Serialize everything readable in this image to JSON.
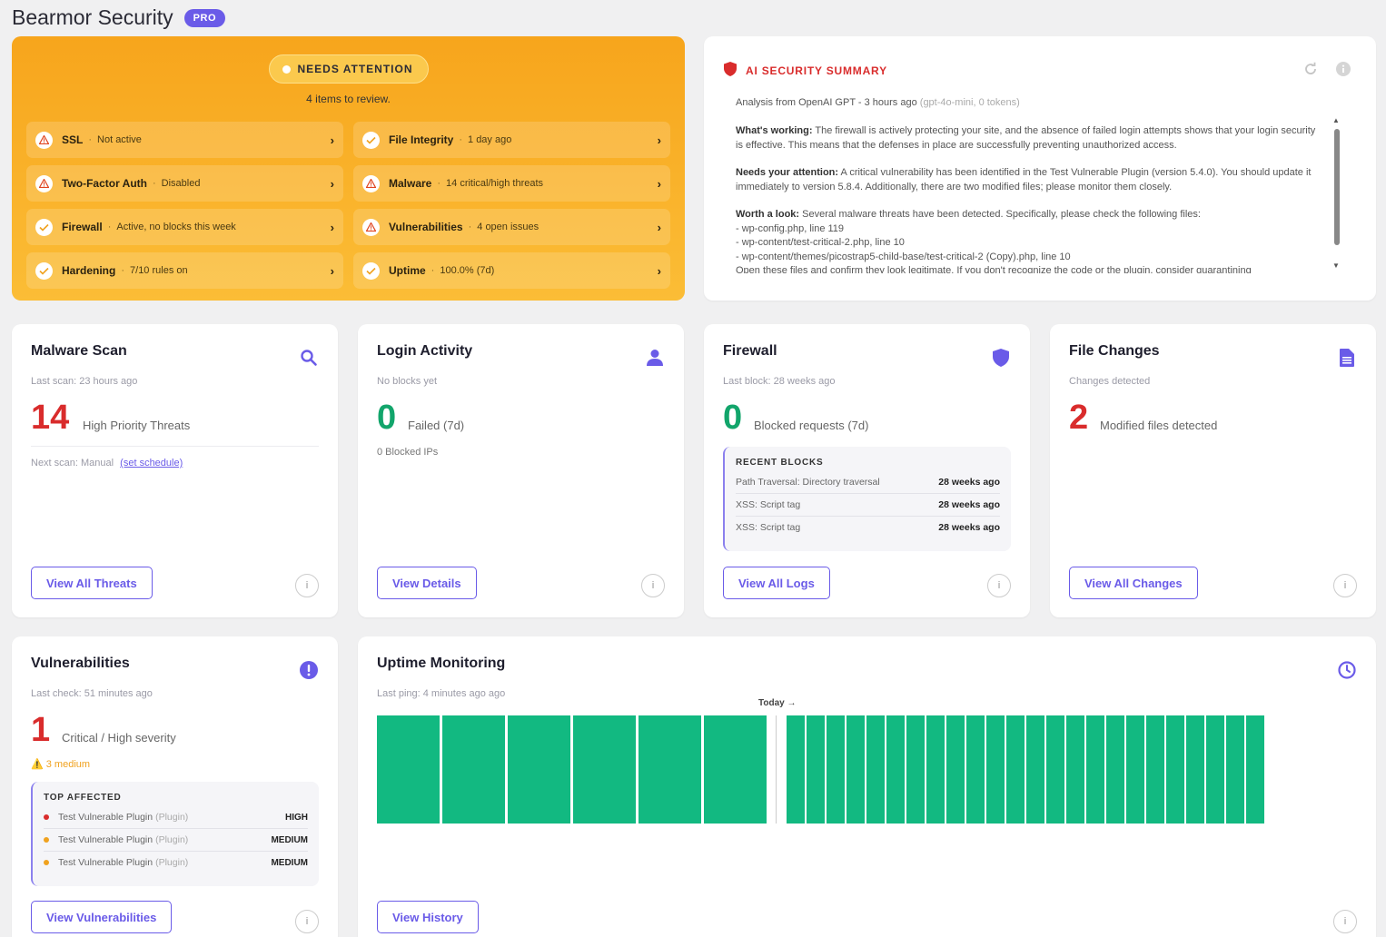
{
  "app": {
    "title": "Bearmor Security",
    "badge": "PRO"
  },
  "attention": {
    "status": "NEEDS ATTENTION",
    "summary": "4 items to review.",
    "items": [
      {
        "name": "SSL",
        "detail": "Not active",
        "state": "warn"
      },
      {
        "name": "File Integrity",
        "detail": "1 day ago",
        "state": "ok"
      },
      {
        "name": "Two-Factor Auth",
        "detail": "Disabled",
        "state": "warn"
      },
      {
        "name": "Malware",
        "detail": "14 critical/high threats",
        "state": "warn"
      },
      {
        "name": "Firewall",
        "detail": "Active, no blocks this week",
        "state": "ok"
      },
      {
        "name": "Vulnerabilities",
        "detail": "4 open issues",
        "state": "warn"
      },
      {
        "name": "Hardening",
        "detail": "7/10 rules on",
        "state": "ok"
      },
      {
        "name": "Uptime",
        "detail": "100.0% (7d)",
        "state": "ok"
      }
    ]
  },
  "ai_summary": {
    "title": "AI SECURITY SUMMARY",
    "meta": "Analysis from OpenAI GPT - 3 hours ago",
    "meta_muted": "(gpt-4o-mini, 0 tokens)",
    "working_label": "What's working:",
    "working_text": "The firewall is actively protecting your site, and the absence of failed login attempts shows that your login security is effective. This means that the defenses in place are successfully preventing unauthorized access.",
    "attention_label": "Needs your attention:",
    "attention_text": "A critical vulnerability has been identified in the Test Vulnerable Plugin (version 5.4.0). You should update it immediately to version 5.8.4. Additionally, there are two modified files; please monitor them closely.",
    "worth_label": "Worth a look:",
    "worth_text": "Several malware threats have been detected. Specifically, please check the following files:",
    "files": [
      "- wp-config.php, line 119",
      "- wp-content/test-critical-2.php, line 10",
      "- wp-content/themes/picostrap5-child-base/test-critical-2 (Copy).php, line 10"
    ],
    "trailing": "Open these files and confirm they look legitimate. If you don't recognize the code or the plugin, consider quarantining"
  },
  "malware": {
    "title": "Malware Scan",
    "sub": "Last scan: 23 hours ago",
    "value": "14",
    "label": "High Priority Threats",
    "next_scan": "Next scan: Manual",
    "schedule_link": "(set schedule)",
    "button": "View All Threats"
  },
  "login": {
    "title": "Login Activity",
    "sub": "No blocks yet",
    "value": "0",
    "label": "Failed (7d)",
    "blocked_ips": "0 Blocked IPs",
    "button": "View Details"
  },
  "firewall": {
    "title": "Firewall",
    "sub": "Last block: 28 weeks ago",
    "value": "0",
    "label": "Blocked requests (7d)",
    "recent_title": "RECENT BLOCKS",
    "recent": [
      {
        "rule": "Path Traversal: Directory traversal",
        "time": "28 weeks ago"
      },
      {
        "rule": "XSS: Script tag",
        "time": "28 weeks ago"
      },
      {
        "rule": "XSS: Script tag",
        "time": "28 weeks ago"
      }
    ],
    "button": "View All Logs"
  },
  "files": {
    "title": "File Changes",
    "sub": "Changes detected",
    "value": "2",
    "label": "Modified files detected",
    "button": "View All Changes"
  },
  "vulns": {
    "title": "Vulnerabilities",
    "sub": "Last check: 51 minutes ago",
    "value": "1",
    "label": "Critical / High severity",
    "medium": "⚠️ 3 medium",
    "top_title": "TOP AFFECTED",
    "top": [
      {
        "name": "Test Vulnerable Plugin",
        "type": "(Plugin)",
        "severity": "HIGH",
        "color": "#d92c2c"
      },
      {
        "name": "Test Vulnerable Plugin",
        "type": "(Plugin)",
        "severity": "MEDIUM",
        "color": "#f0a21f"
      },
      {
        "name": "Test Vulnerable Plugin",
        "type": "(Plugin)",
        "severity": "MEDIUM",
        "color": "#f0a21f"
      }
    ],
    "button": "View Vulnerabilities"
  },
  "uptime": {
    "title": "Uptime Monitoring",
    "sub": "Last ping: 4 minutes ago ago",
    "today_label": "Today →",
    "button": "View History",
    "past_days_up": 6,
    "today_checks_up": 24,
    "bar_color": "#12b981"
  },
  "colors": {
    "accent": "#6a5be8",
    "danger": "#d92c2c",
    "success": "#12a56b",
    "warning": "#f7a51c"
  }
}
